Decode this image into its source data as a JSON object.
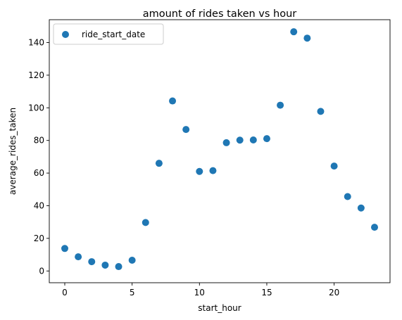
{
  "chart_data": {
    "type": "scatter",
    "title": "amount of rides taken vs hour",
    "xlabel": "start_hour",
    "ylabel": "average_rides_taken",
    "xlim": [
      -1.15,
      24.15
    ],
    "ylim": [
      -7.2,
      154.0
    ],
    "xticks": [
      0,
      5,
      10,
      15,
      20
    ],
    "yticks": [
      0,
      20,
      40,
      60,
      80,
      100,
      120,
      140
    ],
    "legend_position": "upper-left",
    "grid": false,
    "marker_color": "#1f77b4",
    "series": [
      {
        "name": "ride_start_date",
        "x": [
          0,
          1,
          2,
          3,
          4,
          5,
          6,
          7,
          8,
          9,
          10,
          11,
          12,
          13,
          14,
          15,
          16,
          17,
          18,
          19,
          20,
          21,
          22,
          23
        ],
        "y": [
          13.8,
          8.7,
          5.7,
          3.6,
          2.7,
          6.6,
          29.7,
          66.0,
          104.2,
          86.7,
          61.0,
          61.5,
          78.6,
          80.2,
          80.3,
          81.1,
          101.6,
          146.6,
          142.7,
          97.8,
          64.3,
          45.6,
          38.6,
          26.8
        ]
      }
    ]
  }
}
